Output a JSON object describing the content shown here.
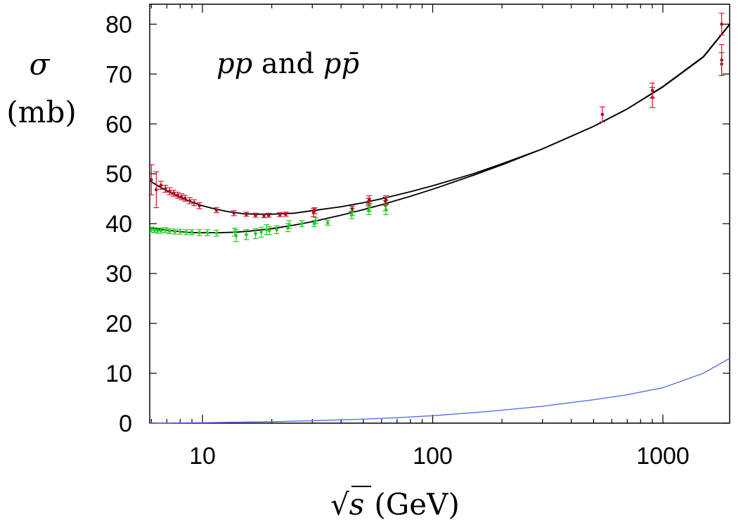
{
  "chart_data": {
    "type": "scatter",
    "title": "",
    "annotation": {
      "part1": "pp",
      "part2": " and ",
      "part3": "p",
      "part4": "p̄"
    },
    "ylabel": {
      "symbol": "σ",
      "unit": "(mb)"
    },
    "xlabel": {
      "sqrt_symbol": "√",
      "variable": "s",
      "unit": "(GeV)"
    },
    "xscale": "log",
    "xlim": [
      5.9,
      1950
    ],
    "ylim": [
      0,
      84
    ],
    "x_tick_values": [
      10,
      100,
      1000
    ],
    "x_tick_labels": [
      "10",
      "100",
      "1000"
    ],
    "y_tick_values": [
      0,
      10,
      20,
      30,
      40,
      50,
      60,
      70,
      80
    ],
    "y_tick_labels": [
      "0",
      "10",
      "20",
      "30",
      "40",
      "50",
      "60",
      "70",
      "80"
    ],
    "colors": {
      "ppbar": "#e01030",
      "pp": "#22cc22",
      "fit": "#000000",
      "hard_pomeron": "#5a6ee6"
    },
    "series": [
      {
        "name": "p-pbar data",
        "color": "#e01030",
        "points": [
          {
            "x": 6.0,
            "y": 48.8,
            "err": 3.0
          },
          {
            "x": 6.3,
            "y": 46.8,
            "err": 3.6
          },
          {
            "x": 6.6,
            "y": 47.7,
            "err": 0.8
          },
          {
            "x": 6.9,
            "y": 47.0,
            "err": 0.7
          },
          {
            "x": 7.2,
            "y": 46.5,
            "err": 0.7
          },
          {
            "x": 7.5,
            "y": 46.1,
            "err": 0.6
          },
          {
            "x": 7.8,
            "y": 45.7,
            "err": 0.6
          },
          {
            "x": 8.1,
            "y": 45.4,
            "err": 0.6
          },
          {
            "x": 8.4,
            "y": 45.1,
            "err": 0.6
          },
          {
            "x": 8.8,
            "y": 44.6,
            "err": 0.6
          },
          {
            "x": 9.2,
            "y": 44.2,
            "err": 0.6
          },
          {
            "x": 9.7,
            "y": 43.6,
            "err": 0.6
          },
          {
            "x": 11.5,
            "y": 42.7,
            "err": 0.5
          },
          {
            "x": 13.7,
            "y": 42.1,
            "err": 0.5
          },
          {
            "x": 15.5,
            "y": 41.9,
            "err": 0.4
          },
          {
            "x": 17.0,
            "y": 41.7,
            "err": 0.4
          },
          {
            "x": 18.5,
            "y": 41.6,
            "err": 0.4
          },
          {
            "x": 19.4,
            "y": 41.7,
            "err": 0.4
          },
          {
            "x": 21.7,
            "y": 41.8,
            "err": 0.4
          },
          {
            "x": 23.0,
            "y": 41.9,
            "err": 0.4
          },
          {
            "x": 30.4,
            "y": 42.2,
            "err": 0.8
          },
          {
            "x": 30.7,
            "y": 42.6,
            "err": 0.6
          },
          {
            "x": 44.7,
            "y": 43.0,
            "err": 0.5
          },
          {
            "x": 52.6,
            "y": 44.4,
            "err": 0.7
          },
          {
            "x": 53.0,
            "y": 44.8,
            "err": 0.8
          },
          {
            "x": 62.3,
            "y": 44.5,
            "err": 0.8
          },
          {
            "x": 62.7,
            "y": 44.8,
            "err": 0.8
          },
          {
            "x": 546,
            "y": 61.9,
            "err": 1.5
          },
          {
            "x": 900,
            "y": 65.3,
            "err": 2.0
          },
          {
            "x": 900,
            "y": 66.7,
            "err": 1.5
          },
          {
            "x": 1800,
            "y": 72.0,
            "err": 2.3
          },
          {
            "x": 1800,
            "y": 72.8,
            "err": 3.1
          },
          {
            "x": 1800,
            "y": 80.0,
            "err": 2.2
          }
        ]
      },
      {
        "name": "pp data",
        "color": "#22cc22",
        "points": [
          {
            "x": 6.0,
            "y": 38.8,
            "err": 0.5
          },
          {
            "x": 6.2,
            "y": 38.7,
            "err": 0.5
          },
          {
            "x": 6.4,
            "y": 38.6,
            "err": 0.5
          },
          {
            "x": 6.6,
            "y": 38.6,
            "err": 0.5
          },
          {
            "x": 6.9,
            "y": 38.7,
            "err": 0.5
          },
          {
            "x": 7.2,
            "y": 38.5,
            "err": 0.5
          },
          {
            "x": 7.6,
            "y": 38.4,
            "err": 0.5
          },
          {
            "x": 8.0,
            "y": 38.4,
            "err": 0.5
          },
          {
            "x": 8.5,
            "y": 38.3,
            "err": 0.5
          },
          {
            "x": 9.0,
            "y": 38.3,
            "err": 0.5
          },
          {
            "x": 9.7,
            "y": 38.2,
            "err": 0.6
          },
          {
            "x": 10.5,
            "y": 38.2,
            "err": 0.6
          },
          {
            "x": 11.5,
            "y": 38.1,
            "err": 0.6
          },
          {
            "x": 13.8,
            "y": 38.3,
            "err": 0.8
          },
          {
            "x": 14.0,
            "y": 37.6,
            "err": 1.2
          },
          {
            "x": 15.5,
            "y": 37.8,
            "err": 1.0
          },
          {
            "x": 17.0,
            "y": 38.0,
            "err": 1.0
          },
          {
            "x": 18.0,
            "y": 38.3,
            "err": 1.0
          },
          {
            "x": 19.0,
            "y": 38.8,
            "err": 1.0
          },
          {
            "x": 19.5,
            "y": 38.6,
            "err": 0.8
          },
          {
            "x": 21.0,
            "y": 38.8,
            "err": 0.8
          },
          {
            "x": 23.5,
            "y": 39.2,
            "err": 0.8
          },
          {
            "x": 23.8,
            "y": 39.8,
            "err": 0.8
          },
          {
            "x": 27.0,
            "y": 40.0,
            "err": 0.6
          },
          {
            "x": 30.6,
            "y": 40.0,
            "err": 0.6
          },
          {
            "x": 31.0,
            "y": 40.6,
            "err": 0.6
          },
          {
            "x": 35.0,
            "y": 40.2,
            "err": 0.5
          },
          {
            "x": 44.5,
            "y": 41.7,
            "err": 0.7
          },
          {
            "x": 44.8,
            "y": 42.4,
            "err": 0.7
          },
          {
            "x": 52.8,
            "y": 42.6,
            "err": 0.8
          },
          {
            "x": 53.0,
            "y": 43.3,
            "err": 0.8
          },
          {
            "x": 62.3,
            "y": 43.6,
            "err": 1.0
          },
          {
            "x": 62.7,
            "y": 42.8,
            "err": 1.0
          }
        ]
      }
    ],
    "curves": [
      {
        "name": "p-pbar fit",
        "color": "#000000",
        "x": [
          5.9,
          6.5,
          7,
          8,
          9,
          10,
          11,
          12,
          13,
          14,
          15,
          17,
          20,
          25,
          30,
          40,
          50,
          60,
          80,
          100,
          150,
          200,
          300,
          500,
          700,
          1000,
          1500,
          1950
        ],
        "y": [
          48.6,
          47.4,
          46.6,
          45.3,
          44.3,
          43.6,
          43.1,
          42.7,
          42.4,
          42.2,
          42.0,
          41.9,
          41.9,
          42.1,
          42.6,
          43.4,
          44.2,
          45.0,
          46.4,
          47.6,
          50.0,
          52.0,
          55.0,
          59.5,
          63.0,
          67.5,
          73.5,
          80.0
        ]
      },
      {
        "name": "pp fit",
        "color": "#000000",
        "x": [
          5.9,
          6.5,
          7,
          8,
          9,
          10,
          11,
          12,
          14,
          16,
          20,
          25,
          30,
          40,
          50,
          60,
          80,
          100,
          150,
          200,
          300,
          500,
          700,
          1000,
          1500,
          1950
        ],
        "y": [
          39.2,
          38.9,
          38.7,
          38.4,
          38.2,
          38.2,
          38.2,
          38.2,
          38.3,
          38.5,
          39.0,
          39.7,
          40.4,
          41.7,
          42.8,
          43.8,
          45.5,
          46.9,
          49.7,
          51.8,
          55.0,
          59.5,
          63.0,
          67.4,
          73.4,
          79.9
        ]
      },
      {
        "name": "hard pomeron contribution",
        "color": "#5a6ee6",
        "x": [
          5.9,
          10,
          20,
          30,
          50,
          70,
          100,
          150,
          200,
          300,
          500,
          700,
          1000,
          1500,
          1950
        ],
        "y": [
          0.02,
          0.1,
          0.3,
          0.5,
          0.8,
          1.1,
          1.5,
          2.1,
          2.6,
          3.4,
          4.7,
          5.7,
          7.1,
          10.0,
          13.0
        ]
      }
    ]
  }
}
